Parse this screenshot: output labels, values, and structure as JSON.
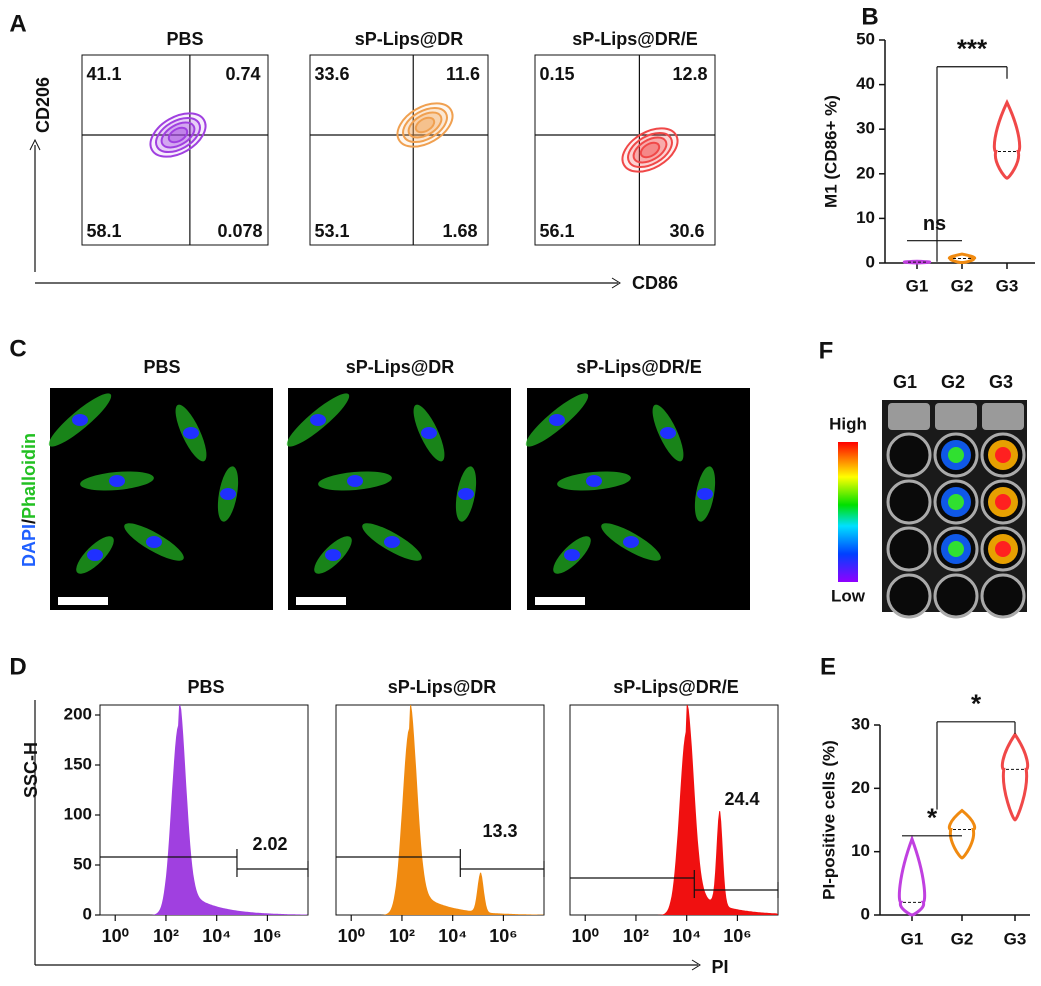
{
  "panel_a": {
    "letter": "A",
    "y_label": "CD206",
    "x_label": "CD86",
    "plots": [
      {
        "title": "PBS",
        "color": "#a040e0",
        "quadrants": [
          "41.1",
          "0.74",
          "58.1",
          "0.078"
        ]
      },
      {
        "title": "sP-Lips@DR",
        "color": "#f0a050",
        "quadrants": [
          "33.6",
          "11.6",
          "53.1",
          "1.68"
        ]
      },
      {
        "title": "sP-Lips@DR/E",
        "color": "#f04848",
        "quadrants": [
          "0.15",
          "12.8",
          "56.1",
          "30.6"
        ]
      }
    ]
  },
  "panel_c": {
    "letter": "C",
    "stain_a": "DAPI",
    "sep": "/",
    "stain_b": "Phalloidin",
    "titles": [
      "PBS",
      "sP-Lips@DR",
      "sP-Lips@DR/E"
    ]
  },
  "panel_f": {
    "letter": "F",
    "columns": [
      "G1",
      "G2",
      "G3"
    ],
    "high": "High",
    "low": "Low"
  },
  "panel_d": {
    "letter": "D",
    "y_label": "SSC-H",
    "x_label": "PI",
    "ylim": [
      0,
      210
    ],
    "yticks": [
      0,
      50,
      100,
      150,
      200
    ],
    "xlim": [
      -0.6,
      7.6
    ],
    "xticks": [
      {
        "value": 0,
        "label": "10⁰"
      },
      {
        "value": 2,
        "label": "10²"
      },
      {
        "value": 4,
        "label": "10⁴"
      },
      {
        "value": 6,
        "label": "10⁶"
      }
    ],
    "plots": [
      {
        "title": "PBS",
        "color": "#a040e0",
        "gate_label": "2.02",
        "peaks": [
          190,
          40
        ]
      },
      {
        "title": "sP-Lips@DR",
        "color": "#f08a10",
        "gate_label": "13.3",
        "peaks": [
          187,
          40
        ]
      },
      {
        "title": "sP-Lips@DR/E",
        "color": "#f01010",
        "gate_label": "24.4",
        "peaks": [
          185,
          95
        ]
      }
    ]
  },
  "chart_data": [
    {
      "type": "violin",
      "letter": "B",
      "y_label": "M1 (CD86+ %)",
      "categories": [
        "G1",
        "G2",
        "G3"
      ],
      "colors": [
        "#c040e0",
        "#f08a10",
        "#f04848"
      ],
      "values": [
        0.2,
        1,
        25
      ],
      "min": [
        0,
        0.1,
        19
      ],
      "max": [
        0.4,
        2,
        36
      ],
      "ylim": [
        0,
        50
      ],
      "yticks": [
        0,
        10,
        20,
        30,
        40,
        50
      ],
      "annotations": [
        "ns",
        "***"
      ]
    },
    {
      "type": "violin",
      "letter": "E",
      "y_label": "PI-positive cells  (%)",
      "categories": [
        "G1",
        "G2",
        "G3"
      ],
      "colors": [
        "#c040e0",
        "#f08a10",
        "#f04848"
      ],
      "values": [
        2,
        13.5,
        23
      ],
      "min": [
        0,
        9,
        15
      ],
      "max": [
        12,
        16.5,
        28.5
      ],
      "ylim": [
        0,
        30
      ],
      "yticks": [
        0,
        10,
        20,
        30
      ],
      "annotations": [
        "*",
        "*"
      ]
    }
  ]
}
